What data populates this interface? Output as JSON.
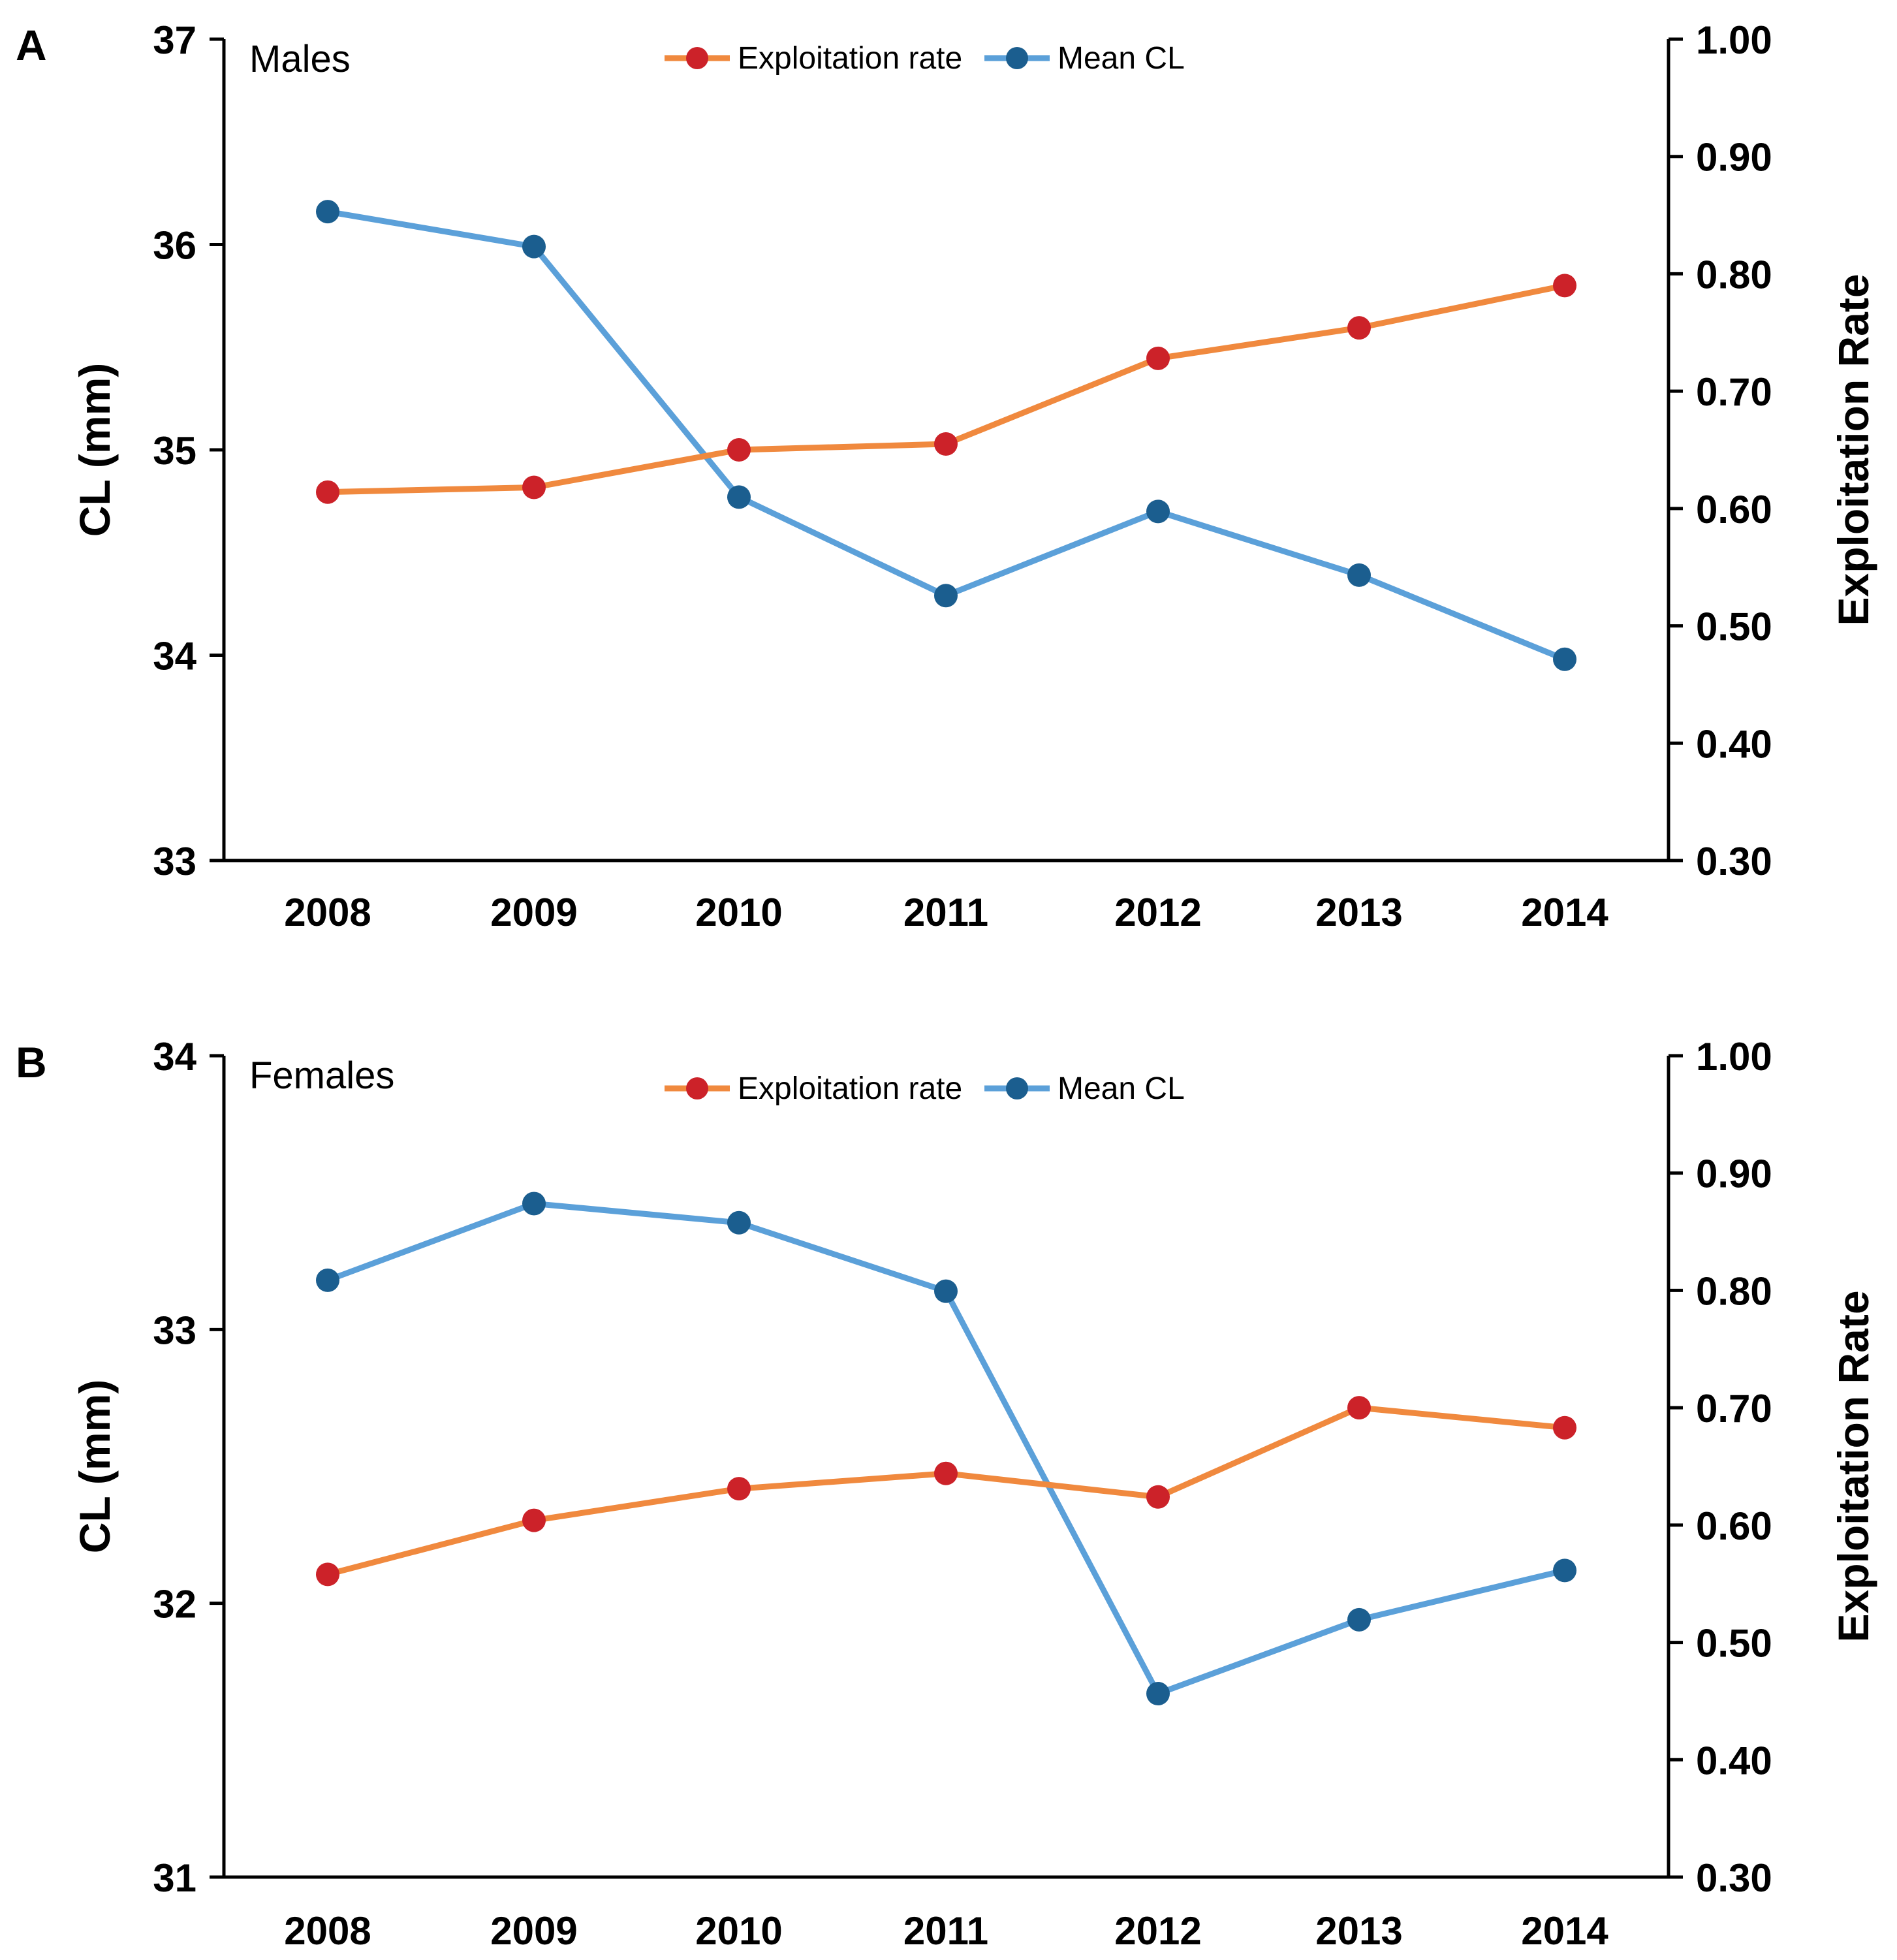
{
  "colors": {
    "exploitation_line": "#F0893E",
    "exploitation_marker": "#CC2229",
    "mean_cl_line": "#5BA0D9",
    "mean_cl_marker": "#1B5E8F",
    "axis": "#000000"
  },
  "chart_data": [
    {
      "type": "line",
      "panel_label": "A",
      "title": "Males",
      "categories": [
        "2008",
        "2009",
        "2010",
        "2011",
        "2012",
        "2013",
        "2014"
      ],
      "ylabel": "CL (mm)",
      "ylim": [
        33,
        37
      ],
      "yticks": [
        "33",
        "34",
        "35",
        "36",
        "37"
      ],
      "y2label": "Exploitation Rate",
      "y2lim": [
        0.3,
        1.0
      ],
      "y2ticks": [
        "0.30",
        "0.40",
        "0.50",
        "0.60",
        "0.70",
        "0.80",
        "0.90",
        "1.00"
      ],
      "legend": [
        "Exploitation rate",
        "Mean CL"
      ],
      "series": [
        {
          "name": "Exploitation rate",
          "axis": "right",
          "values": [
            0.614,
            0.618,
            0.65,
            0.655,
            0.728,
            0.754,
            0.79
          ]
        },
        {
          "name": "Mean CL",
          "axis": "left",
          "values": [
            36.16,
            35.99,
            34.77,
            34.29,
            34.7,
            34.39,
            33.98
          ]
        }
      ]
    },
    {
      "type": "line",
      "panel_label": "B",
      "title": "Females",
      "categories": [
        "2008",
        "2009",
        "2010",
        "2011",
        "2012",
        "2013",
        "2014"
      ],
      "ylabel": "CL (mm)",
      "ylim": [
        31,
        34
      ],
      "yticks": [
        "31",
        "32",
        "33",
        "34"
      ],
      "y2label": "Exploitation Rate",
      "y2lim": [
        0.3,
        1.0
      ],
      "y2ticks": [
        "0.30",
        "0.40",
        "0.50",
        "0.60",
        "0.70",
        "0.80",
        "0.90",
        "1.00"
      ],
      "legend": [
        "Exploitation rate",
        "Mean CL"
      ],
      "series": [
        {
          "name": "Exploitation rate",
          "axis": "right",
          "values": [
            0.558,
            0.604,
            0.631,
            0.644,
            0.624,
            0.7,
            0.683
          ]
        },
        {
          "name": "Mean CL",
          "axis": "left",
          "values": [
            33.18,
            33.46,
            33.39,
            33.14,
            31.67,
            31.94,
            32.12
          ]
        }
      ]
    }
  ]
}
